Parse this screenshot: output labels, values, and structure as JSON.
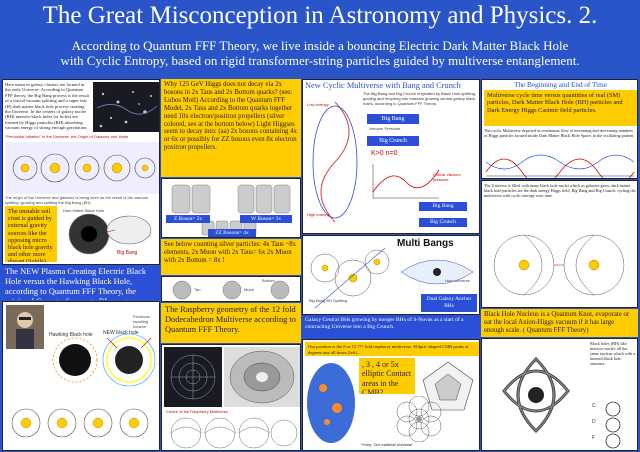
{
  "header": {
    "title": "The Great Misconception in Astronomy and Physics. 2.",
    "subtitle_line1": "According to Quantum FFF Theory, we live inside a bouncing Electric Dark Matter Black Hole",
    "subtitle_line2": "with Cyclic Entropy, based on rigid transformer-string particles guided by multiverse entanglement."
  },
  "col1": {
    "intro": "Here massive galaxy clusters are formed in the early Universe. According to Quantum FFF theory, the Big Bang process is the result of a fractal vacuum splitting and a super fast (H) dark matter black hole process creating the Universe. In the centers of galaxy nuclei (BH) massive black holes (or holes) are formed by Higgs particles (BH) absorbing vacuum energy of strong enough gravitation, to get the so called \"Swabbed Inflation\".",
    "caption_hires": "\"Primordial Inflation\" in the Universe: the Origin of Galaxies and Voids",
    "caption_small": "The origin of the Universe and galaxies is being seen as the result of the vacuum splitting: growing and splitting the Big Bang (BH).",
    "yellow_note": "The unstable soil crust is guided by external gravity sources like the opposing micro black hole gravity and other more distant (Subtle) sources.",
    "label_big_bang": "Big Bang",
    "label_dark_matter": "Dark Matter Black Hole",
    "plasma_title": "The NEW Plasma Creating Electric Black Hole versus the Hawking Black Hole, according to Quantum FFF Theory, the origin of Comet - Sunspot –BL mystery.",
    "label_hawking": "Hawking Black hole",
    "label_new_bh": "NEW black hole",
    "label_fermions": "Fermions repelling horizon"
  },
  "col2": {
    "higgs_text": "Why 125 GeV Higgs does not decay via 2x bosons in 2x Taus and 2x Bottom quarks? (see: Lubos Motl) According to the Quantum FFF Model, 2x Taus and 2x Bottom quarks together need 10x electron/positron propellers (silver colored, see at the bottom below) Light Higgses seem to decay into: (aa) 2x bosons containing 4x or 6x or possibly for ZZ bosons even 8x electron positron propellers.",
    "label_z": "Z Boson= 2x",
    "label_w": "W Boson= 3x",
    "label_zz": "ZZ Bosons= 4x",
    "silver_text": "See below counting silver particles: 4x Taus ~8x elements, 2x Muon with 2x Taus= 6x 2x Muon with 2x Bottom = 8x !",
    "label_tau": "Tau",
    "label_muon": "Muon",
    "label_bottom": "Bottom",
    "rasp_title": "The Raspberry geometry of the 12 fold Dodecahedron Multiverse according to Quantum FFF Theory.",
    "label_rasp_center": "Centre of the Raspberry Multiverse"
  },
  "col3": {
    "cyclic_title": "New Cyclic Multiverse with Bang and Crunch",
    "cyclic_sub": "The Big Bang and Big Crunch originated by Black Hole splitting, guiding and recycling into massive growing central galaxy black holes, according to Quantum FFF Theory.",
    "label_big_bang": "Big Bang",
    "label_big_crunch": "Big Crunch",
    "label_k": "K>0  n=0",
    "label_big_bang2": "Big Bang",
    "label_big_crunch2": "Big Crunch",
    "label_low_entropy": "Low entropy",
    "label_high_entropy": "High entropy",
    "label_vacuum": "Vacuum Pressure",
    "label_critical": "Critical Vacuum pressure",
    "multi_bangs": "Multi Bangs",
    "label_big_bang_bh": "Big Bang BH Splitting",
    "label_galaxy_bh": "Dual Galaxy Anchor BHs",
    "label_horn": "Horn universe",
    "galaxy_text": "Galaxy Central BHs growing by merger BHs of S-Novas as a start of a contracting Universe into a Big Crunch.",
    "position_text": "Our position is the 8 or 12 ??? fold raspberry multiverse. Elliptic shaped CMB peaks at degrees any all times (left)...",
    "label_cmb": ", 3 , 4 or 5x elliptic Contact areas in the CMB?",
    "label_grey": "*Grey: Our material Universe"
  },
  "col4": {
    "end_title": "The Beginning and End of Time",
    "end_text": "Multiverse cycle time versus quantities of real (SM) particles, Dark Matter Black Hole (BH) particles and Dark Energy Higgs Casimir field particles.",
    "chart_note": "The cyclic Multiverse depicted as continuous flow of increasing and decreasing numbers of Higgs particles located inside Dark Matter Black Hole Space, in the oscillating pattern.",
    "right_text": "The Universe is filled with many black hole nuclei which as galaxies grow; dark matter black hole particles are the dark energy Higgs field, Big Bang and Big Crunch, cycling the multiverse with cyclic entropy over time.",
    "nucleus_text": "Black Hole Nucleus is a Quantum Knot, evaporate or eat the local Axion-Higgs vacuum if it has large enough scale. ( Quantum FFF Theory)",
    "side_text": "Black holes (BH) like massive nuclei: all the same nucleus which with a knotted black hole structure.",
    "label_c": "C",
    "label_d": "D",
    "label_f": "F"
  },
  "colors": {
    "background": "#2a55c8",
    "yellow": "#ffcc00",
    "panel_blue": "#2b4fd6",
    "text": "#222222"
  }
}
